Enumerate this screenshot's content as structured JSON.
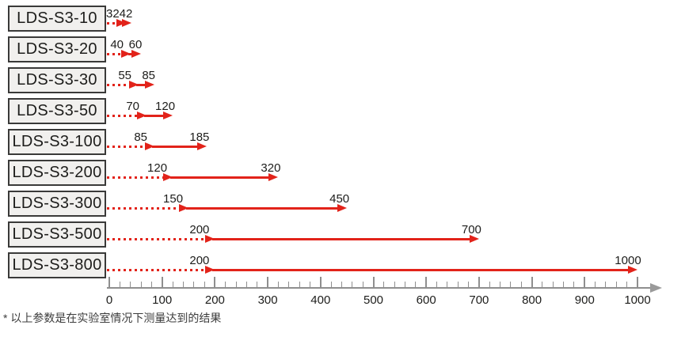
{
  "footnote": "* 以上参数是在实验室情况下测量达到的结果",
  "colors": {
    "arrow": "#e2231a",
    "box_bg": "#f1f0ee",
    "box_border": "#3a3a39",
    "axis": "#8f8f8f",
    "axis_arrow": "#9a9a9a",
    "text": "#1d1d1b",
    "footnote_text": "#3c3c3c"
  },
  "chart_data": {
    "type": "range-bar",
    "title": "",
    "xlabel": "",
    "ylabel": "",
    "x_axis": {
      "min": 0,
      "max": 1000,
      "major_tick_step": 100,
      "minor_tick_step": 20,
      "tick_labels": [
        "0",
        "100",
        "200",
        "300",
        "400",
        "500",
        "600",
        "700",
        "800",
        "900",
        "1000"
      ]
    },
    "series": [
      {
        "model": "LDS-S3-10",
        "range_start": 32,
        "range_end": 42
      },
      {
        "model": "LDS-S3-20",
        "range_start": 40,
        "range_end": 60
      },
      {
        "model": "LDS-S3-30",
        "range_start": 55,
        "range_end": 85
      },
      {
        "model": "LDS-S3-50",
        "range_start": 70,
        "range_end": 120
      },
      {
        "model": "LDS-S3-100",
        "range_start": 85,
        "range_end": 185
      },
      {
        "model": "LDS-S3-200",
        "range_start": 120,
        "range_end": 320
      },
      {
        "model": "LDS-S3-300",
        "range_start": 150,
        "range_end": 450
      },
      {
        "model": "LDS-S3-500",
        "range_start": 200,
        "range_end": 700
      },
      {
        "model": "LDS-S3-800",
        "range_start": 200,
        "range_end": 1000
      }
    ]
  }
}
